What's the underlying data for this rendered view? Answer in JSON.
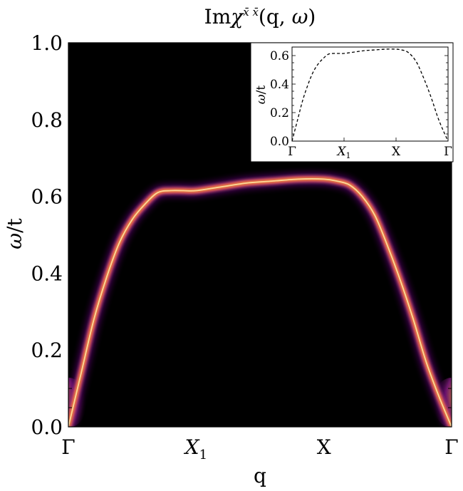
{
  "chart_data": [
    {
      "type": "heatmap",
      "title": "Imχ^{x̄ x̄}(q, ω)",
      "xlabel": "q",
      "ylabel": "ω/t",
      "x_ticks": [
        "Γ",
        "X1",
        "X",
        "Γ"
      ],
      "y_ticks": [
        "0.0",
        "0.2",
        "0.4",
        "0.6",
        "0.8",
        "1.0"
      ],
      "ylim": [
        0,
        1
      ],
      "colormap": "black-purple-orange-white (inferno-like)",
      "background": "#000000",
      "grid": false,
      "dispersion": {
        "x": [
          0,
          0.1,
          0.2,
          0.3,
          0.4,
          0.5,
          0.6,
          0.7,
          0.8,
          0.9,
          1.0,
          1.2,
          1.4,
          1.6,
          1.8,
          2.0,
          2.1,
          2.2,
          2.3,
          2.4,
          2.5,
          2.6,
          2.7,
          2.8,
          2.9,
          3.0
        ],
        "y": [
          0.0,
          0.14,
          0.28,
          0.39,
          0.48,
          0.54,
          0.58,
          0.61,
          0.615,
          0.615,
          0.615,
          0.625,
          0.635,
          0.64,
          0.645,
          0.645,
          0.64,
          0.63,
          0.6,
          0.55,
          0.47,
          0.38,
          0.28,
          0.17,
          0.08,
          0.0
        ]
      },
      "low_energy_tail": "broad bright spectral weight near ω≈0.05–0.1 at both Γ points"
    },
    {
      "type": "line",
      "position": "top-right inset",
      "ylabel": "ω/t",
      "x_ticks": [
        "Γ",
        "X1",
        "X",
        "Γ"
      ],
      "y_ticks": [
        "0.0",
        "0.2",
        "0.4",
        "0.6"
      ],
      "ylim": [
        0,
        0.66
      ],
      "line_style": "dashed",
      "series": [
        {
          "x": [
            0,
            0.1,
            0.2,
            0.3,
            0.4,
            0.5,
            0.6,
            0.7,
            0.8,
            0.9,
            1.0,
            1.2,
            1.4,
            1.6,
            1.8,
            2.0,
            2.1,
            2.2,
            2.3,
            2.4,
            2.5,
            2.6,
            2.7,
            2.8,
            2.9,
            3.0
          ],
          "y": [
            0.0,
            0.14,
            0.28,
            0.39,
            0.48,
            0.54,
            0.58,
            0.61,
            0.615,
            0.615,
            0.615,
            0.625,
            0.635,
            0.64,
            0.645,
            0.645,
            0.64,
            0.63,
            0.6,
            0.55,
            0.47,
            0.38,
            0.28,
            0.17,
            0.08,
            0.0
          ]
        }
      ]
    }
  ]
}
